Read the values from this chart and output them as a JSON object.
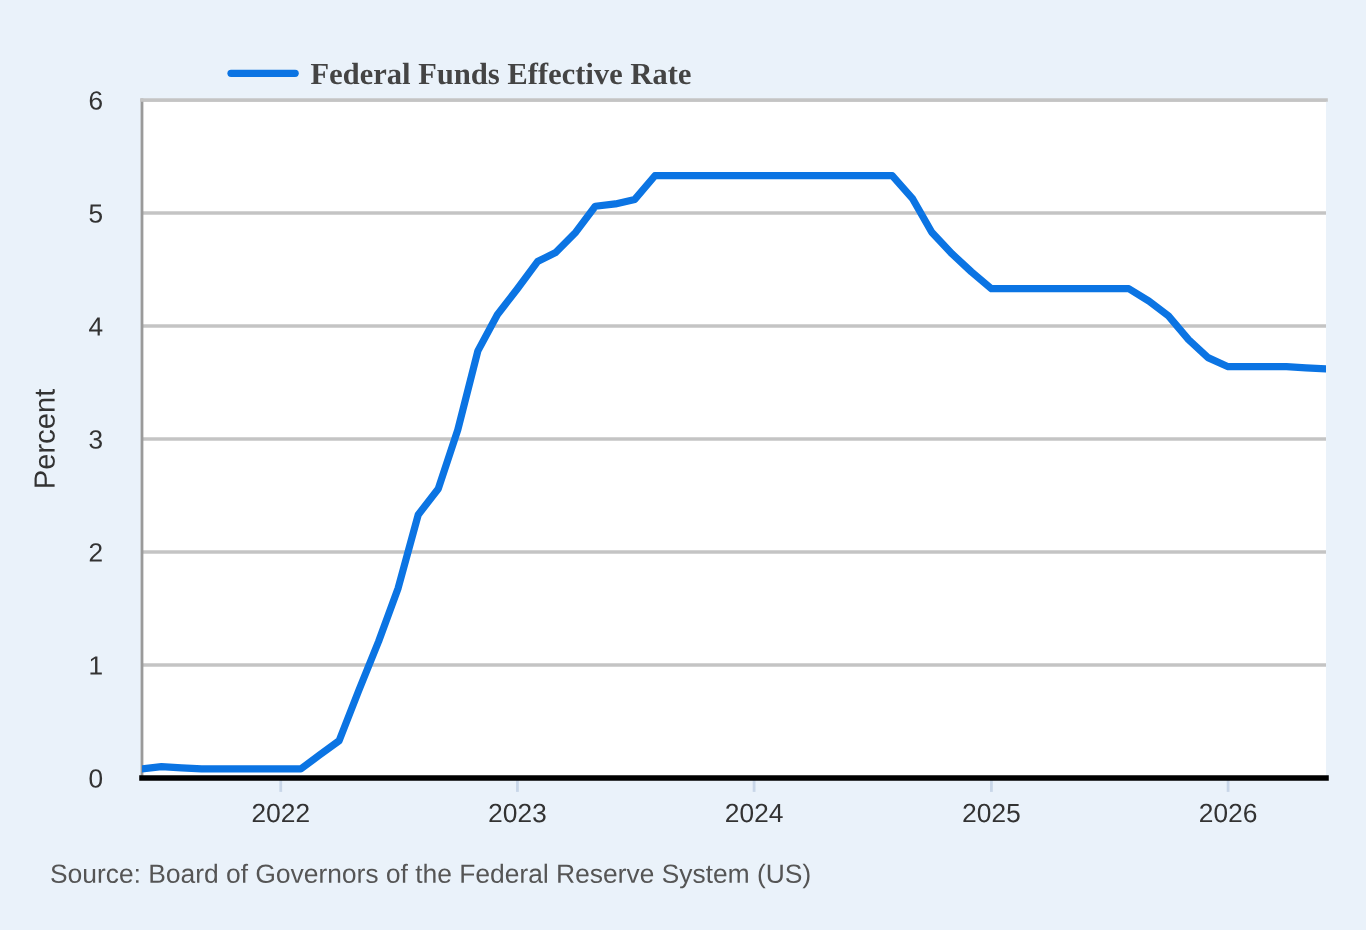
{
  "chart_data": {
    "type": "line",
    "ylabel": "Percent",
    "annotations": [
      "Source: Board of Governors of the Federal Reserve System (US)"
    ],
    "x": [
      "2021-06",
      "2021-07",
      "2021-08",
      "2021-09",
      "2021-10",
      "2021-11",
      "2021-12",
      "2022-01",
      "2022-02",
      "2022-03",
      "2022-04",
      "2022-05",
      "2022-06",
      "2022-07",
      "2022-08",
      "2022-09",
      "2022-10",
      "2022-11",
      "2022-12",
      "2023-01",
      "2023-02",
      "2023-03",
      "2023-04",
      "2023-05",
      "2023-06",
      "2023-07",
      "2023-08",
      "2023-09",
      "2023-10",
      "2023-11",
      "2023-12",
      "2024-01",
      "2024-02",
      "2024-03",
      "2024-04",
      "2024-05",
      "2024-06",
      "2024-07",
      "2024-08",
      "2024-09",
      "2024-10",
      "2024-11",
      "2024-12",
      "2025-01",
      "2025-02",
      "2025-03",
      "2025-04",
      "2025-05",
      "2025-06",
      "2025-07",
      "2025-08",
      "2025-09",
      "2025-10",
      "2025-11",
      "2025-12",
      "2026-01",
      "2026-02",
      "2026-03",
      "2026-04",
      "2026-05",
      "2026-06"
    ],
    "series": [
      {
        "name": "Federal Funds Effective Rate",
        "color": "#0b74e3",
        "values": [
          0.08,
          0.1,
          0.09,
          0.08,
          0.08,
          0.08,
          0.08,
          0.08,
          0.08,
          0.2,
          0.33,
          0.77,
          1.21,
          1.68,
          2.33,
          2.56,
          3.08,
          3.78,
          4.1,
          4.33,
          4.57,
          4.65,
          4.83,
          5.06,
          5.08,
          5.12,
          5.33,
          5.33,
          5.33,
          5.33,
          5.33,
          5.33,
          5.33,
          5.33,
          5.33,
          5.33,
          5.33,
          5.33,
          5.33,
          5.13,
          4.83,
          4.64,
          4.48,
          4.33,
          4.33,
          4.33,
          4.33,
          4.33,
          4.33,
          4.33,
          4.33,
          4.22,
          4.09,
          3.88,
          3.72,
          3.64,
          3.64,
          3.64,
          3.64,
          3.63,
          3.62
        ]
      }
    ],
    "xlim": [
      "2021-06",
      "2026-06"
    ],
    "xticks": [
      "2022",
      "2023",
      "2024",
      "2025",
      "2026"
    ],
    "ylim": [
      0,
      6
    ],
    "yticks": [
      0,
      1,
      2,
      3,
      4,
      5,
      6
    ],
    "grid": "y",
    "legend": "top left",
    "line_style": "solid"
  }
}
